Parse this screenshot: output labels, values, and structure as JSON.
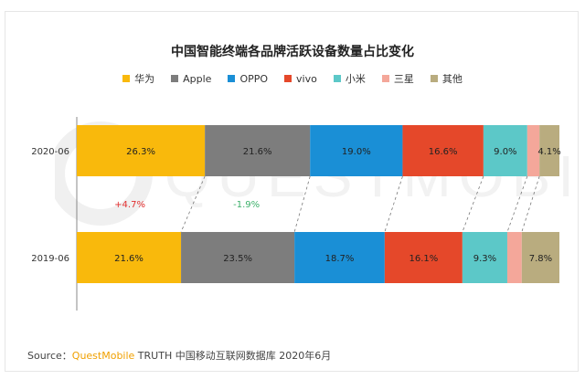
{
  "chart_data": {
    "type": "bar",
    "stacked": "percent",
    "orientation": "horizontal",
    "title": "中国智能终端各品牌活跃设备数量占比变化",
    "categories": [
      "2020-06",
      "2019-06"
    ],
    "series": [
      {
        "name": "华为",
        "color": "#f9b90c",
        "values": [
          26.3,
          21.6
        ],
        "labels": [
          "26.3%",
          "21.6%"
        ]
      },
      {
        "name": "Apple",
        "color": "#7d7d7d",
        "values": [
          21.6,
          23.5
        ],
        "labels": [
          "21.6%",
          "23.5%"
        ]
      },
      {
        "name": "OPPO",
        "color": "#1a8fd6",
        "values": [
          19.0,
          18.7
        ],
        "labels": [
          "19.0%",
          "18.7%"
        ]
      },
      {
        "name": "vivo",
        "color": "#e5482a",
        "values": [
          16.6,
          16.1
        ],
        "labels": [
          "16.6%",
          "16.1%"
        ]
      },
      {
        "name": "小米",
        "color": "#5cc8c8",
        "values": [
          9.0,
          9.3
        ],
        "labels": [
          "9.0%",
          "9.3%"
        ]
      },
      {
        "name": "三星",
        "color": "#f4a79a",
        "values": [
          2.5,
          3.0
        ],
        "labels": [
          "",
          ""
        ]
      },
      {
        "name": "其他",
        "color": "#b9ac7f",
        "values": [
          4.1,
          7.8
        ],
        "labels": [
          "4.1%",
          "7.8%"
        ]
      }
    ],
    "changes": [
      {
        "series": "华为",
        "text": "+4.7%",
        "color": "#e23030"
      },
      {
        "series": "Apple",
        "text": "-1.9%",
        "color": "#3cb06a"
      }
    ],
    "legend_position": "top-center",
    "grid": false
  },
  "watermark_text": "QUESTMOBILE",
  "source": {
    "prefix": "Source：",
    "brand": "QuestMobile",
    "rest": " TRUTH 中国移动互联网数据库 2020年6月"
  }
}
